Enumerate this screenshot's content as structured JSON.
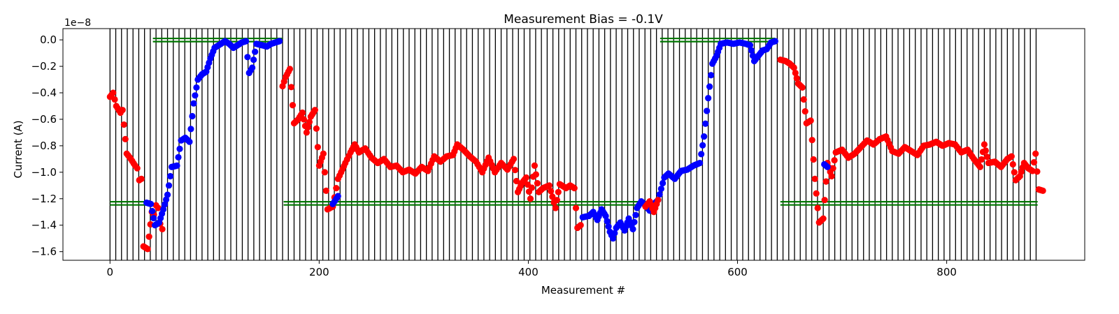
{
  "chart_data": {
    "type": "scatter",
    "title": "Measurement Bias = -0.1V",
    "xlabel": "Measurement #",
    "ylabel": "Current (A)",
    "y_offset_label": "1e−8",
    "y_scale": 1e-08,
    "xlim": [
      -45,
      932
    ],
    "ylim": [
      -1.665,
      0.085
    ],
    "xticks": [
      0,
      200,
      400,
      600,
      800
    ],
    "yticks": [
      0.0,
      -0.2,
      -0.4,
      -0.6,
      -0.8,
      -1.0,
      -1.2,
      -1.4,
      -1.6
    ],
    "ytick_labels": [
      "0.0",
      "−0.2",
      "−0.4",
      "−0.6",
      "−0.8",
      "−1.0",
      "−1.2",
      "−1.4",
      "−1.6"
    ],
    "grid": false,
    "vertical_lines": {
      "start": 0,
      "end": 887,
      "step": 5.5,
      "color": "#000000"
    },
    "green_segments": {
      "color": "#007700",
      "y_offset": 0.012,
      "segments": [
        {
          "x": [
            41,
            165
          ],
          "y": -0.001
        },
        {
          "x": [
            526,
            636
          ],
          "y": -0.001
        },
        {
          "x": [
            0,
            40
          ],
          "y": -1.235
        },
        {
          "x": [
            166,
            524
          ],
          "y": -1.235
        },
        {
          "x": [
            641,
            887
          ],
          "y": -1.235
        }
      ]
    },
    "series": [
      {
        "color": "#ff0000",
        "knots": [
          [
            0,
            -0.43
          ],
          [
            3,
            -0.4
          ],
          [
            6,
            -0.5
          ],
          [
            10,
            -0.55
          ],
          [
            12,
            -0.53
          ],
          [
            16,
            -0.86
          ],
          [
            20,
            -0.9
          ],
          [
            24,
            -0.95
          ],
          [
            26,
            -0.97
          ],
          [
            28,
            -1.06
          ],
          [
            30,
            -1.05
          ],
          [
            32,
            -1.56
          ],
          [
            36,
            -1.58
          ],
          [
            40,
            -1.3
          ],
          [
            42,
            -1.32
          ],
          [
            44,
            -1.25
          ],
          [
            46,
            -1.27
          ],
          [
            48,
            -1.39
          ],
          [
            50,
            -1.43
          ]
        ]
      },
      {
        "color": "#0000ff",
        "knots": [
          [
            35,
            -1.23
          ],
          [
            39,
            -1.24
          ],
          [
            43,
            -1.4
          ],
          [
            47,
            -1.38
          ],
          [
            51,
            -1.28
          ],
          [
            55,
            -1.17
          ],
          [
            59,
            -0.96
          ],
          [
            64,
            -0.95
          ],
          [
            68,
            -0.76
          ],
          [
            72,
            -0.74
          ],
          [
            76,
            -0.77
          ],
          [
            80,
            -0.48
          ],
          [
            84,
            -0.3
          ],
          [
            88,
            -0.26
          ],
          [
            92,
            -0.24
          ],
          [
            96,
            -0.14
          ],
          [
            100,
            -0.06
          ],
          [
            106,
            -0.03
          ],
          [
            110,
            -0.01
          ],
          [
            114,
            -0.03
          ],
          [
            118,
            -0.06
          ],
          [
            122,
            -0.04
          ],
          [
            126,
            -0.02
          ],
          [
            130,
            -0.01
          ],
          [
            133,
            -0.25
          ],
          [
            136,
            -0.21
          ],
          [
            140,
            -0.03
          ],
          [
            145,
            -0.04
          ],
          [
            150,
            -0.05
          ],
          [
            154,
            -0.03
          ],
          [
            158,
            -0.02
          ],
          [
            162,
            -0.01
          ]
        ]
      },
      {
        "color": "#ff0000",
        "knots": [
          [
            165,
            -0.35
          ],
          [
            168,
            -0.28
          ],
          [
            172,
            -0.22
          ],
          [
            176,
            -0.63
          ],
          [
            180,
            -0.6
          ],
          [
            184,
            -0.55
          ],
          [
            188,
            -0.7
          ],
          [
            192,
            -0.58
          ],
          [
            196,
            -0.53
          ],
          [
            200,
            -0.95
          ],
          [
            204,
            -0.86
          ],
          [
            208,
            -1.28
          ],
          [
            213,
            -1.26
          ],
          [
            218,
            -1.05
          ],
          [
            221,
            -1.0
          ],
          [
            225,
            -0.93
          ],
          [
            230,
            -0.85
          ],
          [
            234,
            -0.79
          ],
          [
            238,
            -0.85
          ],
          [
            244,
            -0.82
          ],
          [
            250,
            -0.89
          ],
          [
            256,
            -0.93
          ],
          [
            262,
            -0.9
          ],
          [
            268,
            -0.96
          ],
          [
            274,
            -0.95
          ],
          [
            280,
            -1.0
          ],
          [
            286,
            -0.98
          ],
          [
            292,
            -1.01
          ],
          [
            298,
            -0.96
          ],
          [
            304,
            -0.99
          ],
          [
            310,
            -0.88
          ],
          [
            316,
            -0.92
          ],
          [
            322,
            -0.88
          ],
          [
            328,
            -0.87
          ],
          [
            332,
            -0.79
          ],
          [
            338,
            -0.83
          ],
          [
            344,
            -0.88
          ],
          [
            350,
            -0.92
          ],
          [
            356,
            -1.0
          ],
          [
            362,
            -0.89
          ],
          [
            368,
            -1.0
          ],
          [
            374,
            -0.93
          ],
          [
            380,
            -0.98
          ],
          [
            386,
            -0.9
          ],
          [
            390,
            -1.15
          ],
          [
            394,
            -1.08
          ],
          [
            398,
            -1.04
          ],
          [
            402,
            -1.2
          ],
          [
            406,
            -0.95
          ],
          [
            410,
            -1.15
          ],
          [
            414,
            -1.12
          ],
          [
            420,
            -1.1
          ],
          [
            426,
            -1.27
          ],
          [
            430,
            -1.09
          ],
          [
            436,
            -1.12
          ],
          [
            440,
            -1.1
          ],
          [
            444,
            -1.12
          ],
          [
            447,
            -1.42
          ],
          [
            450,
            -1.4
          ]
        ]
      },
      {
        "color": "#0000ff",
        "knots": [
          [
            213,
            -1.24
          ],
          [
            218,
            -1.18
          ],
          [
            452,
            -1.34
          ],
          [
            458,
            -1.33
          ],
          [
            462,
            -1.3
          ],
          [
            466,
            -1.36
          ],
          [
            470,
            -1.28
          ],
          [
            474,
            -1.33
          ],
          [
            478,
            -1.45
          ],
          [
            481,
            -1.5
          ],
          [
            484,
            -1.42
          ],
          [
            488,
            -1.38
          ],
          [
            492,
            -1.44
          ],
          [
            496,
            -1.35
          ],
          [
            500,
            -1.43
          ],
          [
            504,
            -1.27
          ],
          [
            508,
            -1.22
          ],
          [
            512,
            -1.25
          ],
          [
            516,
            -1.29
          ],
          [
            520,
            -1.24
          ],
          [
            524,
            -1.21
          ],
          [
            530,
            -1.04
          ],
          [
            534,
            -1.01
          ],
          [
            540,
            -1.05
          ],
          [
            546,
            -0.99
          ],
          [
            552,
            -0.98
          ],
          [
            558,
            -0.95
          ],
          [
            564,
            -0.93
          ],
          [
            568,
            -0.73
          ],
          [
            572,
            -0.44
          ],
          [
            576,
            -0.18
          ],
          [
            580,
            -0.12
          ],
          [
            584,
            -0.03
          ],
          [
            590,
            -0.02
          ],
          [
            596,
            -0.03
          ],
          [
            602,
            -0.02
          ],
          [
            608,
            -0.03
          ],
          [
            612,
            -0.04
          ],
          [
            616,
            -0.16
          ],
          [
            620,
            -0.12
          ],
          [
            624,
            -0.08
          ],
          [
            628,
            -0.07
          ],
          [
            632,
            -0.02
          ],
          [
            636,
            -0.01
          ]
        ]
      },
      {
        "color": "#ff0000",
        "knots": [
          [
            512,
            -1.26
          ],
          [
            516,
            -1.22
          ],
          [
            520,
            -1.3
          ],
          [
            524,
            -1.21
          ],
          [
            641,
            -0.15
          ],
          [
            646,
            -0.16
          ],
          [
            650,
            -0.18
          ],
          [
            654,
            -0.21
          ],
          [
            658,
            -0.33
          ],
          [
            662,
            -0.36
          ],
          [
            666,
            -0.63
          ],
          [
            670,
            -0.61
          ],
          [
            674,
            -1.05
          ],
          [
            678,
            -1.38
          ],
          [
            682,
            -1.35
          ],
          [
            686,
            -0.93
          ],
          [
            690,
            -1.03
          ],
          [
            694,
            -0.85
          ],
          [
            700,
            -0.83
          ],
          [
            706,
            -0.89
          ],
          [
            712,
            -0.86
          ],
          [
            718,
            -0.81
          ],
          [
            724,
            -0.76
          ],
          [
            730,
            -0.79
          ],
          [
            736,
            -0.75
          ],
          [
            742,
            -0.73
          ],
          [
            748,
            -0.84
          ],
          [
            754,
            -0.86
          ],
          [
            760,
            -0.81
          ],
          [
            766,
            -0.84
          ],
          [
            772,
            -0.87
          ],
          [
            778,
            -0.8
          ],
          [
            784,
            -0.79
          ],
          [
            790,
            -0.77
          ],
          [
            796,
            -0.8
          ],
          [
            802,
            -0.78
          ],
          [
            808,
            -0.79
          ],
          [
            814,
            -0.85
          ],
          [
            820,
            -0.83
          ],
          [
            826,
            -0.9
          ],
          [
            832,
            -0.96
          ],
          [
            836,
            -0.79
          ],
          [
            840,
            -0.93
          ],
          [
            846,
            -0.92
          ],
          [
            852,
            -0.96
          ],
          [
            858,
            -0.9
          ],
          [
            862,
            -0.88
          ],
          [
            866,
            -1.06
          ],
          [
            870,
            -1.03
          ],
          [
            874,
            -0.93
          ],
          [
            878,
            -0.97
          ],
          [
            882,
            -0.99
          ],
          [
            885,
            -0.86
          ],
          [
            888,
            -1.13
          ],
          [
            892,
            -1.14
          ]
        ]
      },
      {
        "color": "#0000ff",
        "knots": [
          [
            683,
            -0.94
          ],
          [
            686,
            -0.96
          ]
        ]
      }
    ]
  }
}
